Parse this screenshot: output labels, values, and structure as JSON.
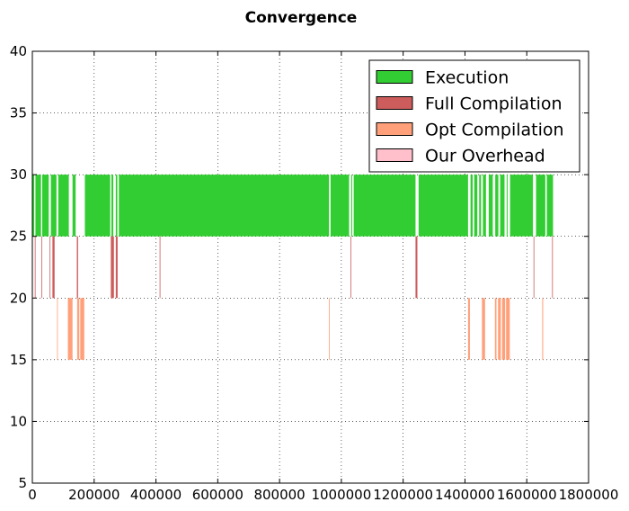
{
  "chart_data": {
    "type": "bar",
    "orientation": "horizontal-timeline",
    "title": "Convergence",
    "xlabel": "",
    "ylabel": "",
    "xlim": [
      0,
      1800000
    ],
    "ylim": [
      5,
      40
    ],
    "xticks": [
      0,
      200000,
      400000,
      600000,
      800000,
      1000000,
      1200000,
      1400000,
      1600000,
      1800000
    ],
    "yticks": [
      5,
      10,
      15,
      20,
      25,
      30,
      35,
      40
    ],
    "grid": true,
    "legend_position": "top-right",
    "series": [
      {
        "name": "Execution",
        "color": "#32cd32",
        "band": [
          25,
          30
        ],
        "intervals": [
          [
            0,
            6000
          ],
          [
            10000,
            28000
          ],
          [
            32000,
            53000
          ],
          [
            60000,
            78000
          ],
          [
            84000,
            118000
          ],
          [
            130000,
            140000
          ],
          [
            170000,
            252000
          ],
          [
            256000,
            262000
          ],
          [
            270000,
            275000
          ],
          [
            280000,
            960000
          ],
          [
            965000,
            1025000
          ],
          [
            1032000,
            1035000
          ],
          [
            1040000,
            1240000
          ],
          [
            1250000,
            1410000
          ],
          [
            1418000,
            1425000
          ],
          [
            1430000,
            1440000
          ],
          [
            1446000,
            1452000
          ],
          [
            1458000,
            1468000
          ],
          [
            1477000,
            1490000
          ],
          [
            1498000,
            1508000
          ],
          [
            1514000,
            1528000
          ],
          [
            1535000,
            1538000
          ],
          [
            1546000,
            1620000
          ],
          [
            1630000,
            1660000
          ],
          [
            1665000,
            1685000
          ]
        ]
      },
      {
        "name": "Full Compilation",
        "color": "#cd5c5c",
        "band": [
          20,
          25
        ],
        "intervals": [
          [
            8000,
            10000
          ],
          [
            29000,
            31000
          ],
          [
            56000,
            58000
          ],
          [
            65000,
            72000
          ],
          [
            144000,
            148000
          ],
          [
            254000,
            264000
          ],
          [
            270000,
            276000
          ],
          [
            412000,
            414000
          ],
          [
            1030000,
            1032000
          ],
          [
            1240000,
            1246000
          ],
          [
            1622000,
            1624000
          ],
          [
            1682000,
            1684000
          ]
        ]
      },
      {
        "name": "Opt Compilation",
        "color": "#ffa07a",
        "band": [
          15,
          20
        ],
        "intervals": [
          [
            80000,
            82000
          ],
          [
            115000,
            130000
          ],
          [
            145000,
            152000
          ],
          [
            155000,
            168000
          ],
          [
            960000,
            962000
          ],
          [
            1410000,
            1416000
          ],
          [
            1455000,
            1465000
          ],
          [
            1497000,
            1502000
          ],
          [
            1507000,
            1516000
          ],
          [
            1520000,
            1530000
          ],
          [
            1533000,
            1545000
          ],
          [
            1650000,
            1653000
          ]
        ]
      },
      {
        "name": "Our Overhead",
        "color": "#ffc0cb",
        "band": [
          10,
          15
        ],
        "intervals": []
      }
    ]
  }
}
